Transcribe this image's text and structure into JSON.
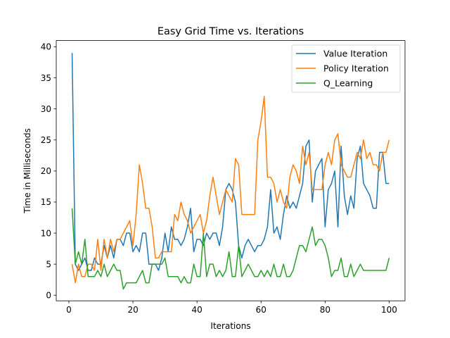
{
  "chart_data": {
    "type": "line",
    "title": "Easy Grid Time vs. Iterations",
    "xlabel": "Iterations",
    "ylabel": "Time in Milliseconds",
    "xlim": [
      -3.95,
      104.95
    ],
    "ylim": [
      -0.9,
      41.0
    ],
    "xticks": [
      0,
      20,
      40,
      60,
      80,
      100
    ],
    "yticks": [
      0,
      5,
      10,
      15,
      20,
      25,
      30,
      35,
      40
    ],
    "grid": false,
    "legend_position": "top-right",
    "x": [
      1,
      2,
      3,
      4,
      5,
      6,
      7,
      8,
      9,
      10,
      11,
      12,
      13,
      14,
      15,
      16,
      17,
      18,
      19,
      20,
      21,
      22,
      23,
      24,
      25,
      26,
      27,
      28,
      29,
      30,
      31,
      32,
      33,
      34,
      35,
      36,
      37,
      38,
      39,
      40,
      41,
      42,
      43,
      44,
      45,
      46,
      47,
      48,
      49,
      50,
      51,
      52,
      53,
      54,
      55,
      56,
      57,
      58,
      59,
      60,
      61,
      62,
      63,
      64,
      65,
      66,
      67,
      68,
      69,
      70,
      71,
      72,
      73,
      74,
      75,
      76,
      77,
      78,
      79,
      80,
      81,
      82,
      83,
      84,
      85,
      86,
      87,
      88,
      89,
      90,
      91,
      92,
      93,
      94,
      95,
      96,
      97,
      98,
      99,
      100
    ],
    "series": [
      {
        "name": "Value Iteration",
        "color": "#1f77b4",
        "values": [
          39,
          5,
          4,
          5,
          6,
          4,
          4,
          6,
          5,
          5,
          8,
          6,
          8,
          6,
          9,
          9,
          8,
          10,
          10,
          7,
          8,
          7,
          10,
          10,
          5,
          5,
          5,
          4,
          6,
          10,
          7,
          11,
          9,
          9,
          8,
          9,
          11,
          14,
          7,
          9,
          9,
          8,
          10,
          9,
          10,
          10,
          8,
          11,
          17,
          18,
          17,
          15,
          8,
          6,
          8,
          9,
          8,
          7,
          8,
          8,
          9,
          11,
          17,
          10,
          11,
          9,
          13,
          16,
          14,
          15,
          14,
          16,
          18,
          24,
          25,
          15,
          20,
          21,
          22,
          11,
          17,
          18,
          20,
          11,
          24,
          16,
          13,
          16,
          14,
          22,
          24,
          18,
          17,
          16,
          14,
          14,
          23,
          23,
          18,
          18
        ]
      },
      {
        "name": "Policy Iteration",
        "color": "#ff7f0e",
        "values": [
          5,
          2,
          5,
          3,
          3,
          5,
          5,
          4,
          9,
          4,
          9,
          6,
          9,
          7,
          9,
          9,
          10,
          11,
          12,
          8,
          13,
          21,
          18,
          14,
          14,
          11,
          6,
          6,
          7,
          7,
          7,
          7,
          13,
          12,
          15,
          13,
          12,
          10,
          11,
          12,
          13,
          10,
          12,
          16,
          19,
          16,
          13,
          15,
          17,
          16,
          15,
          22,
          21,
          13,
          13,
          13,
          13,
          13,
          25,
          28,
          32,
          19,
          19,
          18,
          15,
          17,
          15,
          14,
          19,
          21,
          20,
          18,
          24,
          21,
          23,
          17,
          17,
          17,
          17,
          21,
          23,
          21,
          25,
          26,
          21,
          20,
          19,
          19,
          21,
          23,
          22,
          25,
          22,
          23,
          21,
          21,
          20,
          23,
          23,
          25
        ]
      },
      {
        "name": "Q_Learning",
        "color": "#2ca02c",
        "values": [
          14,
          5,
          7,
          5,
          9,
          3,
          3,
          3,
          4,
          3,
          5,
          3,
          4,
          5,
          4,
          4,
          1,
          2,
          2,
          2,
          2,
          3,
          4,
          2,
          2,
          5,
          5,
          5,
          5,
          6,
          3,
          3,
          3,
          3,
          2,
          3,
          2,
          2,
          5,
          3,
          3,
          10,
          3,
          5,
          5,
          3,
          4,
          3,
          4,
          7,
          3,
          3,
          8,
          3,
          4,
          5,
          4,
          3,
          3,
          4,
          3,
          4,
          3,
          5,
          3,
          3,
          5,
          3,
          3,
          4,
          6,
          8,
          8,
          7,
          9,
          11,
          8,
          9,
          9,
          8,
          6,
          3,
          4,
          4,
          6,
          3,
          3,
          5,
          3,
          4,
          5,
          4,
          4,
          4,
          4,
          4,
          4,
          4,
          4,
          6
        ]
      }
    ]
  }
}
